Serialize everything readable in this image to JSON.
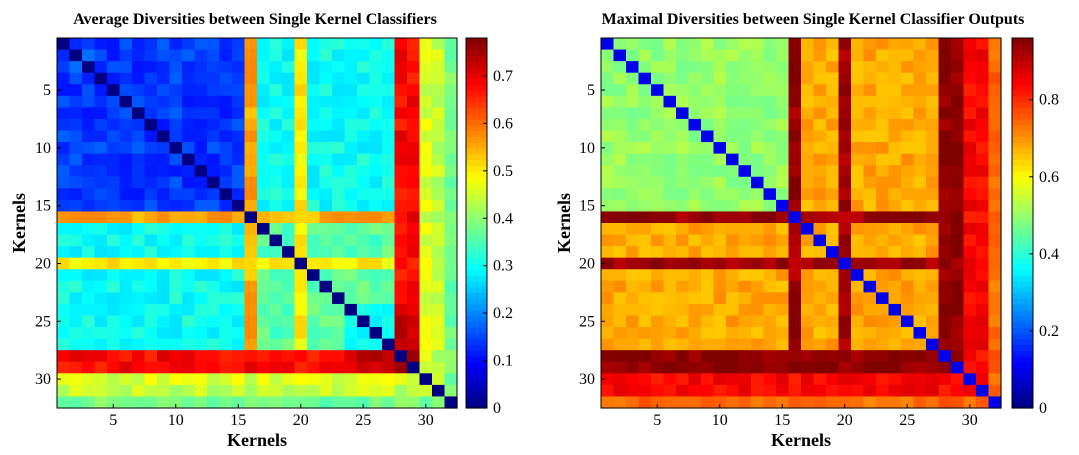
{
  "chart_data": [
    {
      "type": "heatmap",
      "title": "Average Diversities between Single Kernel Classifiers",
      "xlabel": "Kernels",
      "ylabel": "Kernels",
      "size": 32,
      "xticks": [
        5,
        10,
        15,
        20,
        25,
        30
      ],
      "yticks": [
        5,
        10,
        15,
        20,
        25,
        30
      ],
      "colorbar": {
        "range": [
          0,
          0.78
        ],
        "ticks": [
          "0",
          "0.1",
          "0.2",
          "0.3",
          "0.4",
          "0.5",
          "0.6",
          "0.7"
        ],
        "tick_values": [
          0,
          0.1,
          0.2,
          0.3,
          0.4,
          0.5,
          0.6,
          0.7
        ]
      },
      "colormap": "jet",
      "structure": {
        "diagonal": 0,
        "blocks": [
          {
            "kernels": [
              1,
              15
            ],
            "value": 0.14
          },
          {
            "kernels": [
              1,
              1
            ],
            "value": 0.22
          },
          {
            "kernels": [
              2,
              3
            ],
            "value": 0.21
          },
          {
            "kernels": [
              17,
              27
            ],
            "value": 0.36
          },
          {
            "kernels": [
              24,
              27
            ],
            "value": 0.3
          }
        ],
        "off_block_value": 0.3,
        "kernel_overrides": [
          {
            "kernel": 16,
            "value": 0.55
          },
          {
            "kernel": 20,
            "value": 0.5
          },
          {
            "kernel": 28,
            "value": 0.68
          },
          {
            "kernel": 29,
            "value": 0.68
          },
          {
            "kernel": 30,
            "value": 0.46
          },
          {
            "kernel": 31,
            "value": 0.44
          },
          {
            "kernel": 32,
            "value": 0.38
          }
        ],
        "pair_overrides": [
          {
            "a": [
              28,
              29
            ],
            "b": [
              28,
              29
            ],
            "value": 0.76
          },
          {
            "a": [
              25,
              27
            ],
            "b": [
              28,
              29
            ],
            "value": 0.74
          }
        ]
      }
    },
    {
      "type": "heatmap",
      "title": "Maximal Diversities between Single Kernel Classifier Outputs",
      "xlabel": "Kernels",
      "ylabel": "Kernels",
      "size": 32,
      "xticks": [
        5,
        10,
        15,
        20,
        25,
        30
      ],
      "yticks": [
        5,
        10,
        15,
        20,
        25,
        30
      ],
      "colorbar": {
        "range": [
          0,
          0.96
        ],
        "ticks": [
          "0",
          "0.2",
          "0.4",
          "0.6",
          "0.8"
        ],
        "tick_values": [
          0,
          0.2,
          0.4,
          0.6,
          0.8
        ]
      },
      "colormap": "jet",
      "structure": {
        "diagonal": 0.1,
        "blocks": [
          {
            "kernels": [
              1,
              15
            ],
            "value": 0.5
          },
          {
            "kernels": [
              17,
              27
            ],
            "value": 0.68
          }
        ],
        "off_block_value": 0.68,
        "kernel_overrides": [
          {
            "kernel": 16,
            "value": 0.93
          },
          {
            "kernel": 20,
            "value": 0.93
          },
          {
            "kernel": 28,
            "value": 0.95
          },
          {
            "kernel": 29,
            "value": 0.95
          },
          {
            "kernel": 30,
            "value": 0.84
          },
          {
            "kernel": 31,
            "value": 0.84
          },
          {
            "kernel": 32,
            "value": 0.74
          }
        ],
        "pair_overrides": [
          {
            "a": [
              16,
              16
            ],
            "b": [
              20,
              20
            ],
            "value": 0.88
          }
        ]
      }
    }
  ]
}
